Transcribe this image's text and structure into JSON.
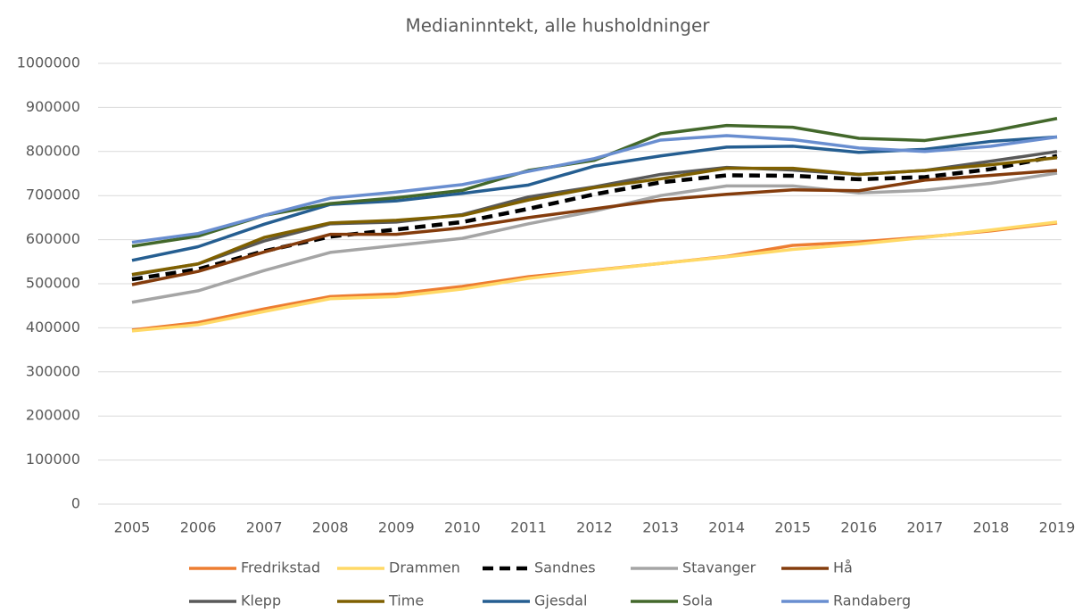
{
  "chart_data": {
    "type": "line",
    "title": "Medianinntekt, alle husholdninger",
    "x": [
      "2005",
      "2006",
      "2007",
      "2008",
      "2009",
      "2010",
      "2011",
      "2012",
      "2013",
      "2014",
      "2015",
      "2016",
      "2017",
      "2018",
      "2019"
    ],
    "ylim": [
      0,
      1000000
    ],
    "yticks": [
      0,
      100000,
      200000,
      300000,
      400000,
      500000,
      600000,
      700000,
      800000,
      900000,
      1000000
    ],
    "grid": true,
    "legend": "bottom",
    "series": [
      {
        "name": "Fredrikstad",
        "color": "#ed7d31",
        "values": [
          395000,
          412000,
          443000,
          471000,
          477000,
          494000,
          516000,
          531000,
          546000,
          562000,
          587000,
          595000,
          606000,
          620000,
          638000
        ]
      },
      {
        "name": "Drammen",
        "color": "#ffd966",
        "values": [
          393000,
          407000,
          437000,
          466000,
          471000,
          488000,
          512000,
          530000,
          546000,
          561000,
          578000,
          590000,
          605000,
          622000,
          640000
        ]
      },
      {
        "name": "Sandnes",
        "color": "#000000",
        "dash": true,
        "values": [
          510000,
          533000,
          574000,
          607000,
          623000,
          640000,
          670000,
          703000,
          730000,
          746000,
          745000,
          737000,
          742000,
          760000,
          790000
        ]
      },
      {
        "name": "Stavanger",
        "color": "#a5a5a5",
        "values": [
          458000,
          484000,
          530000,
          571000,
          587000,
          603000,
          636000,
          665000,
          700000,
          722000,
          722000,
          706000,
          712000,
          728000,
          751000
        ]
      },
      {
        "name": "Hå",
        "color": "#843c0c",
        "values": [
          498000,
          528000,
          572000,
          612000,
          612000,
          627000,
          650000,
          670000,
          690000,
          703000,
          713000,
          711000,
          735000,
          746000,
          757000
        ]
      },
      {
        "name": "Klepp",
        "color": "#595959",
        "values": [
          520000,
          545000,
          597000,
          636000,
          640000,
          657000,
          697000,
          720000,
          748000,
          764000,
          758000,
          748000,
          757000,
          778000,
          800000
        ]
      },
      {
        "name": "Time",
        "color": "#7f6000",
        "values": [
          521000,
          545000,
          605000,
          638000,
          644000,
          655000,
          690000,
          718000,
          738000,
          762000,
          762000,
          748000,
          757000,
          770000,
          786000
        ]
      },
      {
        "name": "Gjesdal",
        "color": "#255e91",
        "values": [
          553000,
          584000,
          635000,
          680000,
          688000,
          705000,
          724000,
          767000,
          790000,
          810000,
          812000,
          798000,
          805000,
          823000,
          833000
        ]
      },
      {
        "name": "Sola",
        "color": "#43682b",
        "values": [
          585000,
          608000,
          655000,
          682000,
          695000,
          712000,
          757000,
          780000,
          840000,
          859000,
          855000,
          830000,
          825000,
          846000,
          875000
        ]
      },
      {
        "name": "Randaberg",
        "color": "#698ed0",
        "values": [
          594000,
          614000,
          655000,
          694000,
          708000,
          725000,
          755000,
          784000,
          826000,
          836000,
          827000,
          808000,
          800000,
          812000,
          833000
        ]
      }
    ]
  }
}
